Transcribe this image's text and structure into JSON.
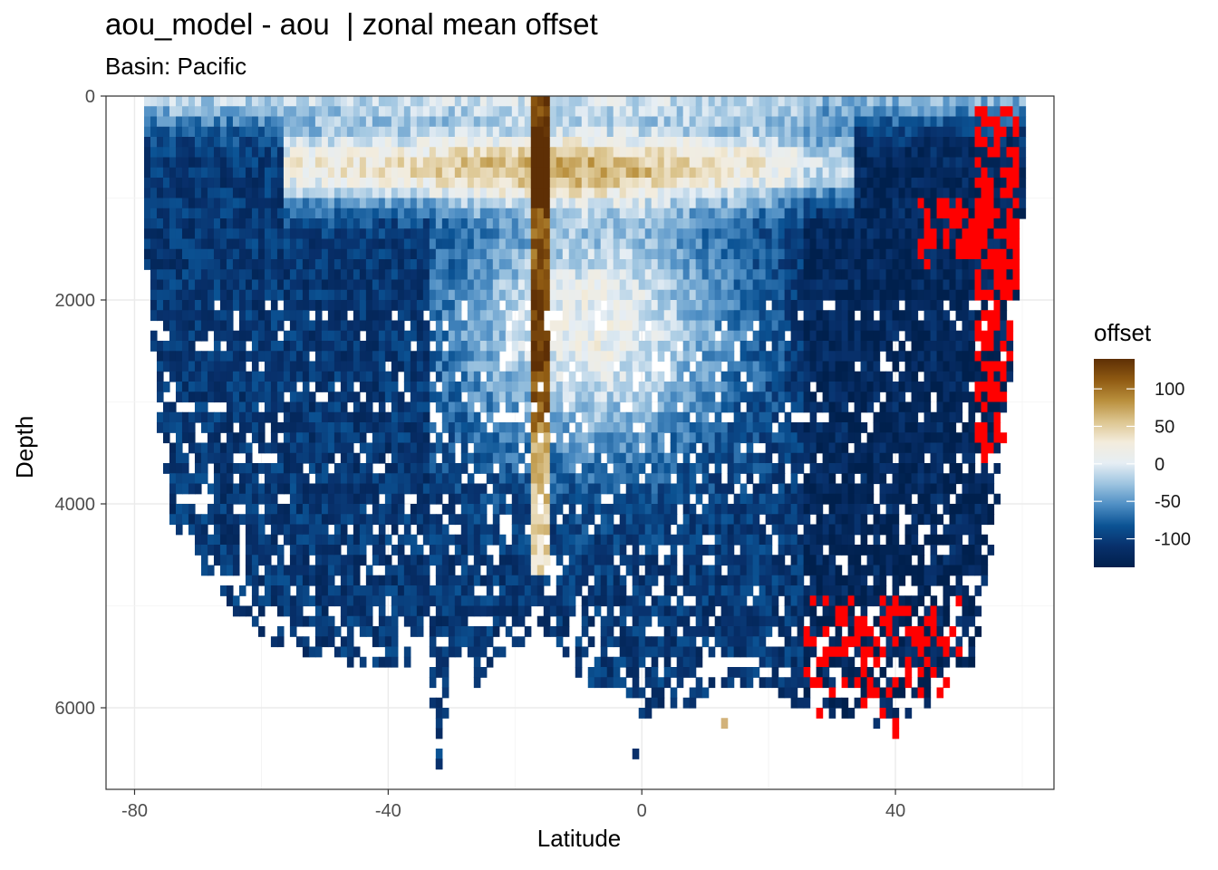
{
  "chart_data": {
    "type": "heatmap",
    "title": "aou_model - aou  | zonal mean offset",
    "subtitle": "Basin: Pacific",
    "xlabel": "Latitude",
    "ylabel": "Depth",
    "xlim": [
      -84.5,
      65
    ],
    "ylim": [
      6800,
      0
    ],
    "y_reversed": true,
    "x_ticks": [
      -80,
      -40,
      0,
      40
    ],
    "y_ticks": [
      0,
      2000,
      4000,
      6000
    ],
    "x_tick_labels": [
      "-80",
      "-40",
      "0",
      "40"
    ],
    "y_tick_labels": [
      "0",
      "2000",
      "4000",
      "6000"
    ],
    "grid": true,
    "legend": {
      "title": "offset",
      "position": "right",
      "breaks": [
        100,
        50,
        0,
        -50,
        -100
      ],
      "break_labels": [
        "100",
        "50",
        "0",
        "-50",
        "-100"
      ],
      "range": [
        -138,
        140
      ],
      "colors": [
        "#00204d",
        "#08306b",
        "#0b5394",
        "#4e8ec4",
        "#9dc4e0",
        "#e6eef4",
        "#f3ecdc",
        "#dcc58f",
        "#b98f3c",
        "#8f5a12",
        "#5e2f05"
      ],
      "out_of_range_color": "#ff0000"
    },
    "cell_size": {
      "latitude": 1,
      "depth": 100
    },
    "profile": {
      "latitudes": [
        -78,
        -76,
        -74,
        -70,
        -66,
        -62,
        -58,
        -54,
        -50,
        -46,
        -42,
        -38,
        -34,
        -32,
        -30,
        -26,
        -22,
        -18,
        -16,
        -12,
        -8,
        -4,
        -2,
        0,
        4,
        8,
        12,
        16,
        20,
        24,
        28,
        32,
        36,
        40,
        44,
        48,
        52,
        54,
        56,
        58,
        60
      ],
      "max_depth": [
        1800,
        3300,
        4200,
        4600,
        5000,
        5200,
        5400,
        5500,
        5550,
        5600,
        5600,
        5600,
        5700,
        6600,
        5700,
        5800,
        5500,
        5400,
        5200,
        5600,
        5800,
        5800,
        5900,
        6100,
        6100,
        6000,
        5900,
        5800,
        5900,
        6000,
        6100,
        6100,
        6200,
        6200,
        6100,
        5900,
        5600,
        5000,
        4000,
        2900,
        1200
      ]
    },
    "bands": {
      "thermocline_depths": [
        600,
        900
      ],
      "thermocline_latitudes": [
        -55,
        30
      ],
      "positive_core_latitude": -16,
      "positive_core_depth_range": [
        300,
        4800
      ]
    },
    "red_regions": [
      {
        "lat_range": [
          53,
          59
        ],
        "depth_range": [
          200,
          3600
        ]
      },
      {
        "lat_range": [
          26,
          50
        ],
        "depth_range": [
          5000,
          6300
        ]
      },
      {
        "lat_range": [
          44,
          52
        ],
        "depth_range": [
          1100,
          1700
        ]
      }
    ],
    "deep_cells": [
      {
        "latitude": -32,
        "depth": 6600
      },
      {
        "latitude": -1,
        "depth": 6500
      },
      {
        "latitude": 13,
        "depth": 6200
      },
      {
        "latitude": 40,
        "depth": 6300
      }
    ]
  }
}
